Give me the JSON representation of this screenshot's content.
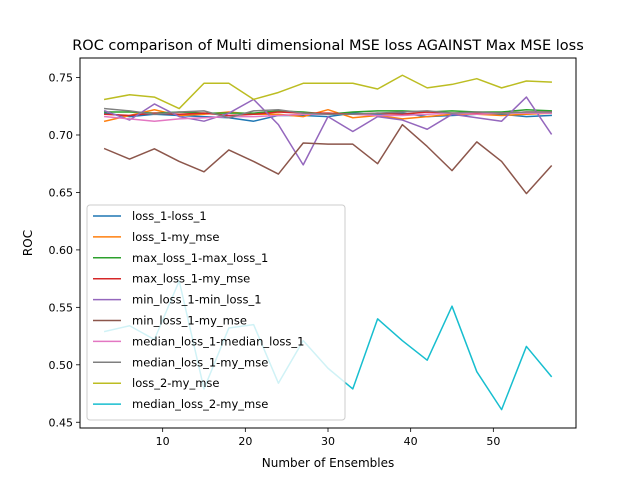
{
  "chart_data": {
    "type": "line",
    "title": "ROC comparison of Multi dimensional MSE loss AGAINST Max MSE loss",
    "xlabel": "Number of Ensembles",
    "ylabel": "ROC",
    "xlim": [
      0,
      60
    ],
    "ylim": [
      0.445,
      0.767
    ],
    "xticks": [
      10,
      20,
      30,
      40,
      50
    ],
    "yticks": [
      0.45,
      0.5,
      0.55,
      0.6,
      0.65,
      0.7,
      0.75
    ],
    "ytick_labels": [
      "0.45",
      "0.50",
      "0.55",
      "0.60",
      "0.65",
      "0.70",
      "0.75"
    ],
    "legend_position": "lower-left",
    "grid": false,
    "x": [
      3,
      6,
      9,
      12,
      15,
      18,
      21,
      24,
      27,
      30,
      33,
      36,
      39,
      42,
      45,
      48,
      51,
      54,
      57
    ],
    "series": [
      {
        "name": "loss_1-loss_1",
        "color": "#1f77b4",
        "values": [
          0.719,
          0.716,
          0.718,
          0.717,
          0.716,
          0.715,
          0.712,
          0.717,
          0.717,
          0.716,
          0.719,
          0.718,
          0.719,
          0.716,
          0.717,
          0.718,
          0.718,
          0.716,
          0.717
        ]
      },
      {
        "name": "loss_1-my_mse",
        "color": "#ff7f0e",
        "values": [
          0.712,
          0.717,
          0.722,
          0.717,
          0.718,
          0.72,
          0.718,
          0.718,
          0.716,
          0.722,
          0.715,
          0.717,
          0.714,
          0.716,
          0.718,
          0.718,
          0.717,
          0.718,
          0.719
        ]
      },
      {
        "name": "max_loss_1-max_loss_1",
        "color": "#2ca02c",
        "values": [
          0.72,
          0.72,
          0.719,
          0.72,
          0.719,
          0.719,
          0.719,
          0.721,
          0.72,
          0.718,
          0.72,
          0.721,
          0.721,
          0.72,
          0.721,
          0.72,
          0.72,
          0.722,
          0.721
        ]
      },
      {
        "name": "max_loss_1-my_mse",
        "color": "#d62728",
        "values": [
          0.718,
          0.717,
          0.719,
          0.718,
          0.719,
          0.717,
          0.718,
          0.72,
          0.719,
          0.719,
          0.718,
          0.719,
          0.718,
          0.72,
          0.719,
          0.719,
          0.719,
          0.72,
          0.72
        ]
      },
      {
        "name": "min_loss_1-min_loss_1",
        "color": "#9467bd",
        "values": [
          0.721,
          0.713,
          0.727,
          0.716,
          0.712,
          0.719,
          0.731,
          0.709,
          0.674,
          0.716,
          0.703,
          0.716,
          0.713,
          0.705,
          0.718,
          0.715,
          0.712,
          0.733,
          0.701
        ]
      },
      {
        "name": "min_loss_1-my_mse",
        "color": "#8c564b",
        "values": [
          0.688,
          0.679,
          0.688,
          0.677,
          0.668,
          0.687,
          0.677,
          0.666,
          0.693,
          0.692,
          0.692,
          0.675,
          0.709,
          0.69,
          0.669,
          0.694,
          0.677,
          0.649,
          0.673
        ]
      },
      {
        "name": "median_loss_1-median_loss_1",
        "color": "#e377c2",
        "values": [
          0.716,
          0.714,
          0.712,
          0.714,
          0.715,
          0.716,
          0.716,
          0.717,
          0.718,
          0.718,
          0.718,
          0.717,
          0.717,
          0.718,
          0.719,
          0.718,
          0.719,
          0.719,
          0.719
        ]
      },
      {
        "name": "median_loss_1-my_mse",
        "color": "#7f7f7f",
        "values": [
          0.723,
          0.721,
          0.718,
          0.72,
          0.721,
          0.715,
          0.721,
          0.722,
          0.719,
          0.718,
          0.718,
          0.719,
          0.72,
          0.721,
          0.719,
          0.72,
          0.719,
          0.72,
          0.72
        ]
      },
      {
        "name": "loss_2-my_mse",
        "color": "#bcbd22",
        "values": [
          0.731,
          0.735,
          0.733,
          0.723,
          0.745,
          0.745,
          0.731,
          0.737,
          0.745,
          0.745,
          0.745,
          0.74,
          0.752,
          0.741,
          0.744,
          0.749,
          0.741,
          0.747,
          0.746
        ]
      },
      {
        "name": "median_loss_2-my_mse",
        "color": "#17becf",
        "values": [
          0.529,
          0.534,
          0.522,
          0.573,
          0.479,
          0.532,
          0.535,
          0.484,
          0.521,
          0.497,
          0.479,
          0.54,
          0.521,
          0.504,
          0.551,
          0.494,
          0.461,
          0.516,
          0.49
        ]
      }
    ]
  }
}
